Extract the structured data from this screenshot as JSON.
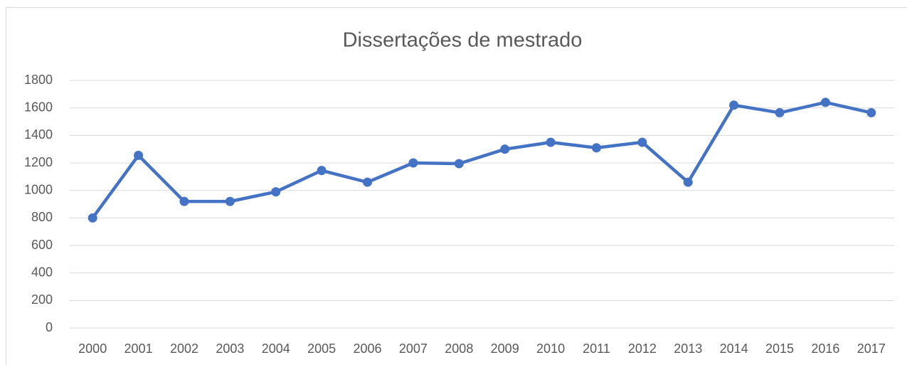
{
  "chart_data": {
    "type": "line",
    "title": "Dissertações de mestrado",
    "categories": [
      "2000",
      "2001",
      "2002",
      "2003",
      "2004",
      "2005",
      "2006",
      "2007",
      "2008",
      "2009",
      "2010",
      "2011",
      "2012",
      "2013",
      "2014",
      "2015",
      "2016",
      "2017"
    ],
    "values": [
      800,
      1255,
      920,
      920,
      990,
      1145,
      1060,
      1200,
      1195,
      1300,
      1350,
      1310,
      1350,
      1060,
      1620,
      1565,
      1640,
      1565
    ],
    "color": "#4472c4",
    "ylim": [
      0,
      1800
    ],
    "yticks": [
      0,
      200,
      400,
      600,
      800,
      1000,
      1200,
      1400,
      1600,
      1800
    ],
    "grid": true
  }
}
